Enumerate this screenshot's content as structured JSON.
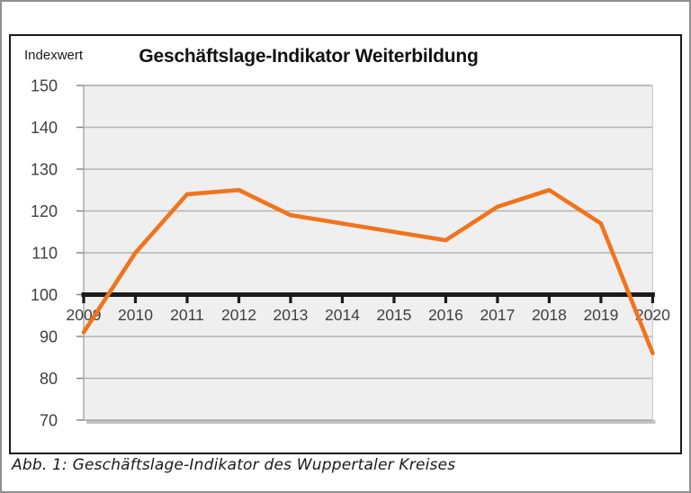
{
  "page": {
    "caption": "Abb. 1: Geschäftslage-Indikator des Wuppertaler Kreises"
  },
  "chart_data": {
    "type": "line",
    "title": "Geschäftslage-Indikator Weiterbildung",
    "ylabel": "Indexwert",
    "x": [
      2009,
      2010,
      2011,
      2012,
      2013,
      2014,
      2015,
      2016,
      2017,
      2018,
      2019,
      2020
    ],
    "series": [
      {
        "name": "Geschäftslage-Indikator Weiterbildung",
        "values": [
          91,
          110,
          124,
          125,
          119,
          117,
          115,
          113,
          121,
          125,
          117,
          86
        ]
      }
    ],
    "ylim": [
      70,
      150
    ],
    "ytick_step": 10,
    "baseline": 100,
    "grid": true,
    "legend": "none",
    "line_color": "#F0741C",
    "plot_bg": "#EFEFEF",
    "grid_color": "#B3B3B3",
    "edge_color": "#A6A6A6",
    "shadow_color": "#C2C2C2",
    "axis_label_color": "#404040",
    "baseline_color": "#1A1A1A"
  }
}
